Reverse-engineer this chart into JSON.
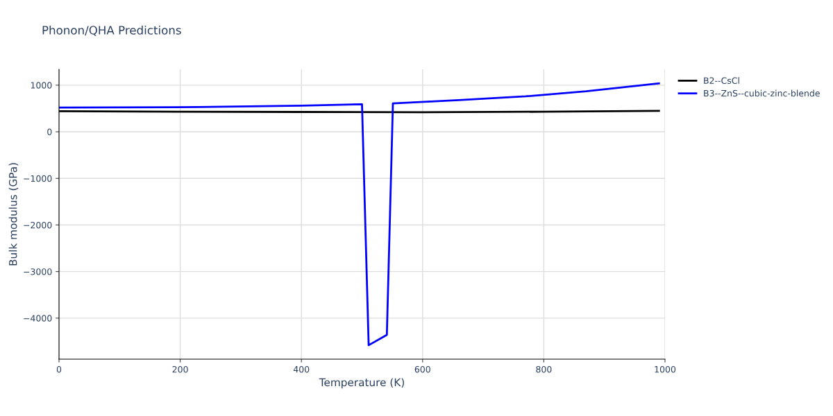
{
  "chart_data": {
    "type": "line",
    "title": "Phonon/QHA Predictions",
    "xlabel": "Temperature (K)",
    "ylabel": "Bulk modulus (GPa)",
    "xlim": [
      0,
      1000
    ],
    "xticks": [
      0,
      200,
      400,
      600,
      800,
      1000
    ],
    "ylim": [
      -4880,
      1340
    ],
    "yticks": [
      {
        "value": -4000,
        "label": "−4000"
      },
      {
        "value": -3000,
        "label": "−3000"
      },
      {
        "value": -2000,
        "label": "−2000"
      },
      {
        "value": -1000,
        "label": "−1000"
      },
      0,
      1000
    ],
    "grid": true,
    "legend": "top right",
    "line_style": "solid",
    "marker": "none",
    "series": [
      {
        "name": "B2--CsCl",
        "color": "#000000",
        "x": [
          0,
          200,
          400,
          600,
          800,
          990
        ],
        "values": [
          440,
          430,
          425,
          420,
          430,
          450
        ]
      },
      {
        "name": "B3--ZnS--cubic-zinc-blende",
        "color": "#0000ff",
        "x": [
          0,
          230,
          400,
          500,
          511,
          541,
          551,
          660,
          770,
          870,
          990
        ],
        "values": [
          520,
          530,
          560,
          590,
          -4580,
          -4360,
          610,
          680,
          760,
          870,
          1040
        ]
      }
    ]
  }
}
